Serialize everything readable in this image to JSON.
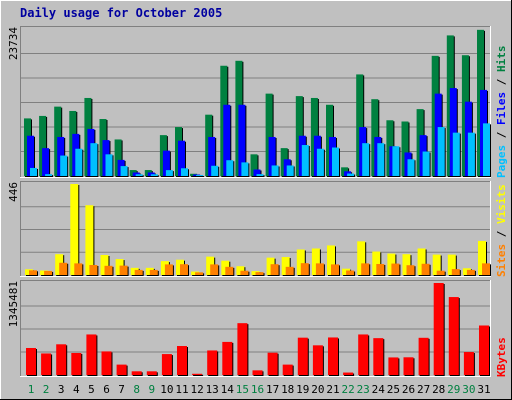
{
  "title": "Daily usage for October 2005",
  "colors": {
    "background": "#C0C0C0",
    "title": "#0000A0",
    "hits": "#008040",
    "files": "#0000FF",
    "pages": "#00C0FF",
    "visits": "#FFFF00",
    "sites": "#FF8000",
    "kbytes": "#FF0000",
    "slash": "#000000",
    "weekend_day": "#008040",
    "weekday": "#000000"
  },
  "chart_data": [
    {
      "type": "bar",
      "panel": "hits-files-pages",
      "ymax_label": "23734",
      "ylim": [
        0,
        23734
      ],
      "legend": {
        "pages": "Pages",
        "files": "Files",
        "hits": "Hits",
        "separator": " / "
      },
      "categories": [
        "1",
        "2",
        "3",
        "4",
        "5",
        "6",
        "7",
        "8",
        "9",
        "10",
        "11",
        "12",
        "13",
        "14",
        "15",
        "16",
        "17",
        "18",
        "19",
        "20",
        "21",
        "22",
        "23",
        "24",
        "25",
        "26",
        "27",
        "28",
        "29",
        "30",
        "31"
      ],
      "series": [
        {
          "name": "Hits",
          "values": [
            9300,
            9700,
            11200,
            10500,
            12600,
            9200,
            5900,
            960,
            960,
            6600,
            7900,
            360,
            9900,
            17800,
            18600,
            3500,
            13300,
            4500,
            12900,
            12600,
            11500,
            1400,
            16400,
            12400,
            9000,
            8800,
            10800,
            19400,
            22700,
            19500,
            23600
          ]
        },
        {
          "name": "Files",
          "values": [
            6500,
            4500,
            6300,
            6800,
            7600,
            5800,
            2600,
            570,
            570,
            4100,
            5700,
            240,
            6300,
            11500,
            11500,
            1050,
            6300,
            2700,
            6500,
            6500,
            6300,
            760,
            7900,
            6300,
            4800,
            3800,
            6600,
            13300,
            14200,
            12000,
            13900
          ]
        },
        {
          "name": "Pages",
          "values": [
            1300,
            300,
            3300,
            4400,
            5300,
            3500,
            1600,
            280,
            280,
            950,
            1250,
            130,
            1650,
            2550,
            2200,
            300,
            1700,
            1700,
            5000,
            4400,
            4600,
            400,
            5300,
            5300,
            4800,
            2700,
            3950,
            7900,
            7000,
            7000,
            8500
          ]
        }
      ]
    },
    {
      "type": "bar",
      "panel": "visits-sites",
      "ymax_label": "446",
      "ylim": [
        0,
        446
      ],
      "legend": {
        "sites": "Sites",
        "visits": "Visits",
        "separator": " / "
      },
      "categories": [
        "1",
        "2",
        "3",
        "4",
        "5",
        "6",
        "7",
        "8",
        "9",
        "10",
        "11",
        "12",
        "13",
        "14",
        "15",
        "16",
        "17",
        "18",
        "19",
        "20",
        "21",
        "22",
        "23",
        "24",
        "25",
        "26",
        "27",
        "28",
        "29",
        "30",
        "31"
      ],
      "series": [
        {
          "name": "Visits",
          "values": [
            28,
            22,
            102,
            446,
            342,
            98,
            78,
            35,
            35,
            68,
            75,
            17,
            90,
            70,
            43,
            19,
            85,
            88,
            125,
            130,
            145,
            31,
            165,
            115,
            105,
            102,
            130,
            100,
            100,
            33,
            167
          ]
        },
        {
          "name": "Sites",
          "values": [
            23,
            20,
            60,
            57,
            49,
            45,
            46,
            25,
            25,
            52,
            53,
            13,
            52,
            40,
            21,
            14,
            53,
            40,
            58,
            57,
            52,
            22,
            57,
            54,
            56,
            48,
            55,
            21,
            29,
            25,
            57
          ]
        }
      ]
    },
    {
      "type": "bar",
      "panel": "kbytes",
      "ymax_label": "1345481",
      "ylim": [
        0,
        1345481
      ],
      "legend": {
        "kbytes": "KBytes"
      },
      "categories": [
        "1",
        "2",
        "3",
        "4",
        "5",
        "6",
        "7",
        "8",
        "9",
        "10",
        "11",
        "12",
        "13",
        "14",
        "15",
        "16",
        "17",
        "18",
        "19",
        "20",
        "21",
        "22",
        "23",
        "24",
        "25",
        "26",
        "27",
        "28",
        "29",
        "30",
        "31"
      ],
      "weekend_days": [
        "1",
        "2",
        "8",
        "9",
        "15",
        "16",
        "22",
        "23",
        "29",
        "30"
      ],
      "series": [
        {
          "name": "KBytes",
          "values": [
            395000,
            315000,
            449000,
            322000,
            593000,
            345000,
            152000,
            54000,
            54000,
            306000,
            424000,
            18000,
            359000,
            484000,
            758000,
            68000,
            326000,
            152000,
            546000,
            434000,
            549000,
            36000,
            593000,
            539000,
            257000,
            259000,
            544000,
            1345481,
            1140000,
            336000,
            724000
          ]
        }
      ]
    }
  ]
}
